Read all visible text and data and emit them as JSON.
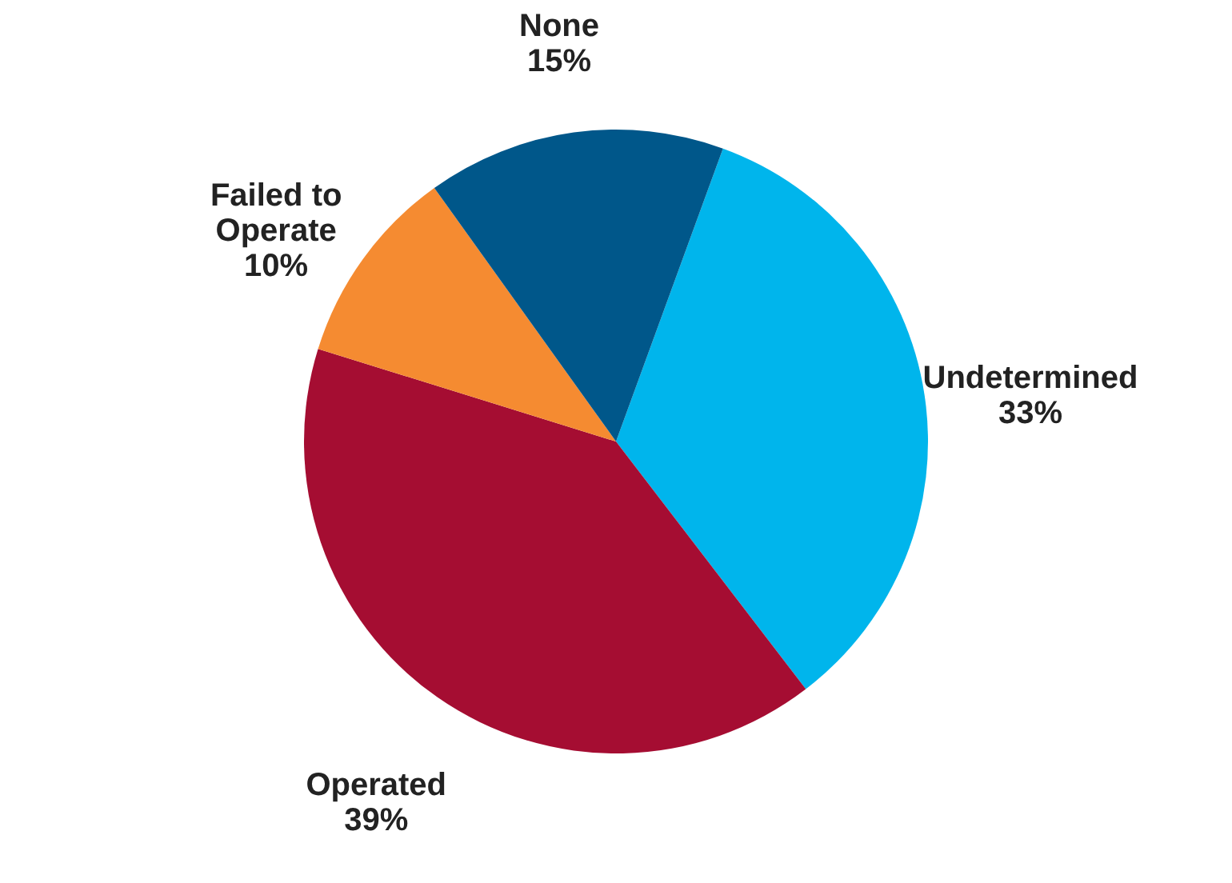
{
  "chart_data": {
    "type": "pie",
    "categories": [
      "Undetermined",
      "Operated",
      "Failed to Operate",
      "None"
    ],
    "values": [
      33,
      39,
      10,
      15
    ],
    "colors": [
      "#00b5ec",
      "#a50d32",
      "#f58b31",
      "#00578a"
    ],
    "value_labels": [
      "33%",
      "39%",
      "10%",
      "15%"
    ]
  }
}
